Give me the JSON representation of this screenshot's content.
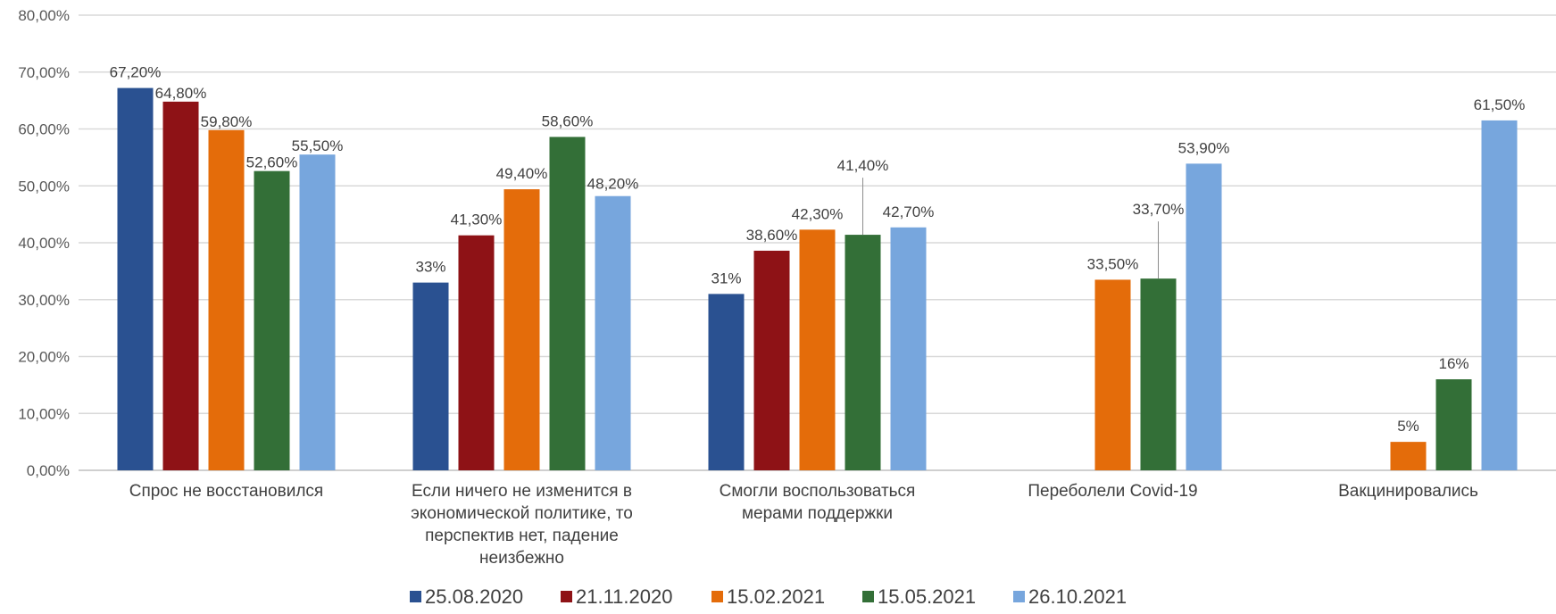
{
  "chart_data": {
    "type": "bar",
    "title": "",
    "xlabel": "",
    "ylabel": "",
    "ylim": [
      0,
      80
    ],
    "y_ticks": [
      "0,00%",
      "10,00%",
      "20,00%",
      "30,00%",
      "40,00%",
      "50,00%",
      "60,00%",
      "70,00%",
      "80,00%"
    ],
    "grid": true,
    "legend_position": "bottom",
    "categories": [
      "Спрос не восстановился",
      "Если ничего не изменится в экономической политике, то перспектив нет, падение неизбежно",
      "Смогли воспользоваться мерами поддержки",
      "Переболели Covid-19",
      "Вакцинировались"
    ],
    "series": [
      {
        "name": "25.08.2020",
        "color": "#2A5191",
        "values": [
          67.2,
          33,
          31,
          null,
          null
        ],
        "labels": [
          "67,20%",
          "33%",
          "31%",
          null,
          null
        ]
      },
      {
        "name": "21.11.2020",
        "color": "#8E1216",
        "values": [
          64.8,
          41.3,
          38.6,
          null,
          null
        ],
        "labels": [
          "64,80%",
          "41,30%",
          "38,60%",
          null,
          null
        ]
      },
      {
        "name": "15.02.2021",
        "color": "#E46C0A",
        "values": [
          59.8,
          49.4,
          42.3,
          33.5,
          5
        ],
        "labels": [
          "59,80%",
          "49,40%",
          "42,30%",
          "33,50%",
          "5%"
        ]
      },
      {
        "name": "15.05.2021",
        "color": "#336F37",
        "values": [
          52.6,
          58.6,
          41.4,
          33.7,
          16
        ],
        "labels": [
          "52,60%",
          "58,60%",
          "41,40%",
          "33,70%",
          "16%"
        ]
      },
      {
        "name": "26.10.2021",
        "color": "#77A6DD",
        "values": [
          55.5,
          48.2,
          42.7,
          53.9,
          61.5
        ],
        "labels": [
          "55,50%",
          "48,20%",
          "42,70%",
          "53,90%",
          "61,50%"
        ]
      }
    ]
  }
}
